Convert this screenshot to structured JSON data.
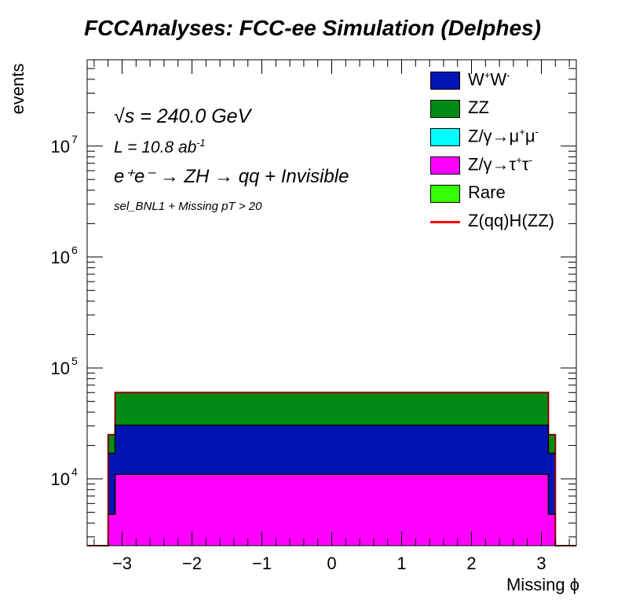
{
  "chart_data": {
    "type": "bar",
    "stacked": true,
    "title": "FCCAnalyses: FCC-ee Simulation (Delphes)",
    "xlabel": "Missing ϕ",
    "ylabel": "events",
    "yscale": "log",
    "xlim": [
      -3.5,
      3.5
    ],
    "ylim": [
      2500,
      60000000
    ],
    "x_ticks": [
      -3,
      -2,
      -1,
      0,
      1,
      2,
      3
    ],
    "x_tick_labels": [
      "−3",
      "−2",
      "−1",
      "0",
      "1",
      "2",
      "3"
    ],
    "y_ticks": [
      10000,
      100000,
      1000000,
      10000000
    ],
    "y_tick_labels": [
      {
        "base": "10",
        "exp": "4"
      },
      {
        "base": "10",
        "exp": "5"
      },
      {
        "base": "10",
        "exp": "6"
      },
      {
        "base": "10",
        "exp": "7"
      }
    ],
    "bins": [
      {
        "x0": -3.5,
        "x1": -3.2,
        "total": 0,
        "rare": 0,
        "tautau": 0,
        "mumu": 0,
        "ww": 0
      },
      {
        "x0": -3.2,
        "x1": -3.1,
        "total": 25000,
        "rare": 0,
        "tautau": 4800,
        "mumu": 4800,
        "ww": 17000
      },
      {
        "x0": -3.1,
        "x1": 3.1,
        "total": 60000,
        "rare": 0,
        "tautau": 11000,
        "mumu": 11000,
        "ww": 30500
      },
      {
        "x0": 3.1,
        "x1": 3.2,
        "total": 25000,
        "rare": 0,
        "tautau": 4800,
        "mumu": 4800,
        "ww": 17000
      },
      {
        "x0": 3.2,
        "x1": 3.5,
        "total": 0,
        "rare": 0,
        "tautau": 0,
        "mumu": 0,
        "ww": 0
      }
    ],
    "series": [
      {
        "name": "W⁺W⁻",
        "color": "#0014b4"
      },
      {
        "name": "ZZ",
        "color": "#008c14"
      },
      {
        "name": "Z/γ→μ⁺μ⁻",
        "color": "#00ffff"
      },
      {
        "name": "Z/γ→τ⁺τ⁻",
        "color": "#ff00ff"
      },
      {
        "name": "Rare",
        "color": "#33ff00"
      },
      {
        "name": "Z(qq)H(ZZ)",
        "color": "#ff0000"
      }
    ],
    "grid": false,
    "legend_position": "top-right"
  },
  "annotations": {
    "sqrt_s": "= 240.0 GeV",
    "sqrt_symbol": "√s",
    "lumi_text": "L = 10.8 ab",
    "lumi_exp": "-1",
    "process": "e⁺e⁻ → ZH → qq + Invisible",
    "selection": "sel_BNL1 + Missing pT > 20"
  },
  "legend": [
    {
      "label_main": "W",
      "sup1": "+",
      "label_mid": "W",
      "sup2": "-",
      "label_end": "",
      "color": "#0014b4",
      "kind": "box"
    },
    {
      "label_main": "ZZ",
      "sup1": "",
      "label_mid": "",
      "sup2": "",
      "label_end": "",
      "color": "#008c14",
      "kind": "box"
    },
    {
      "label_main": "Z/γ→μ",
      "sup1": "+",
      "label_mid": "μ",
      "sup2": "-",
      "label_end": "",
      "color": "#00ffff",
      "kind": "box"
    },
    {
      "label_main": "Z/γ→τ",
      "sup1": "+",
      "label_mid": "τ",
      "sup2": "-",
      "label_end": "",
      "color": "#ff00ff",
      "kind": "box"
    },
    {
      "label_main": "Rare",
      "sup1": "",
      "label_mid": "",
      "sup2": "",
      "label_end": "",
      "color": "#33ff00",
      "kind": "box"
    },
    {
      "label_main": "Z(qq)H(ZZ)",
      "sup1": "",
      "label_mid": "",
      "sup2": "",
      "label_end": "",
      "color": "#ff0000",
      "kind": "line"
    }
  ]
}
